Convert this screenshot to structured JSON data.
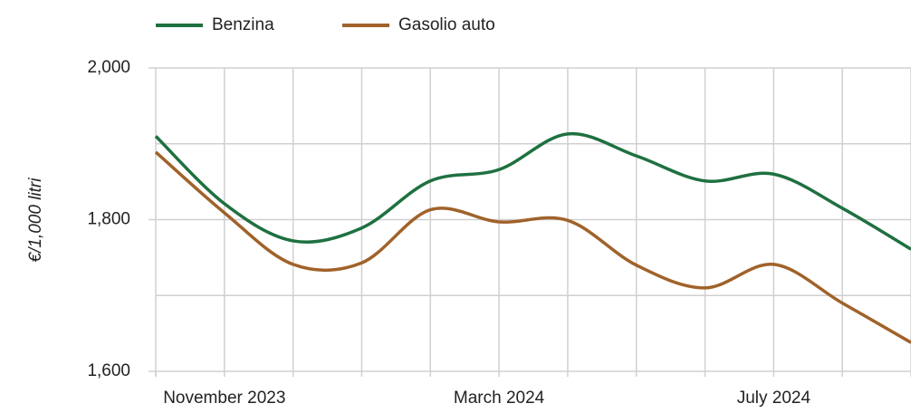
{
  "chart_data": {
    "type": "line",
    "y_label": "€/1,000 litri",
    "categories": [
      null,
      "November 2023",
      null,
      null,
      null,
      "March 2024",
      null,
      null,
      null,
      "July 2024",
      null,
      null
    ],
    "series": [
      {
        "name": "Benzina",
        "color": "#1f7040",
        "values": [
          1910,
          1821,
          1772,
          1789,
          1851,
          1866,
          1913,
          1884,
          1851,
          1860,
          1815,
          1761
        ]
      },
      {
        "name": "Gasolio auto",
        "color": "#a0622a",
        "values": [
          1889,
          1809,
          1741,
          1743,
          1813,
          1797,
          1799,
          1740,
          1710,
          1741,
          1690,
          1638
        ]
      }
    ],
    "ylim": [
      1600,
      2000
    ],
    "yticks": [
      {
        "value": 1600,
        "label": "1,600"
      },
      {
        "value": 1800,
        "label": "1,800"
      },
      {
        "value": 2000,
        "label": "2,000"
      }
    ],
    "yminorticks": [
      1700,
      1900
    ],
    "grid": true,
    "legend": "top"
  }
}
